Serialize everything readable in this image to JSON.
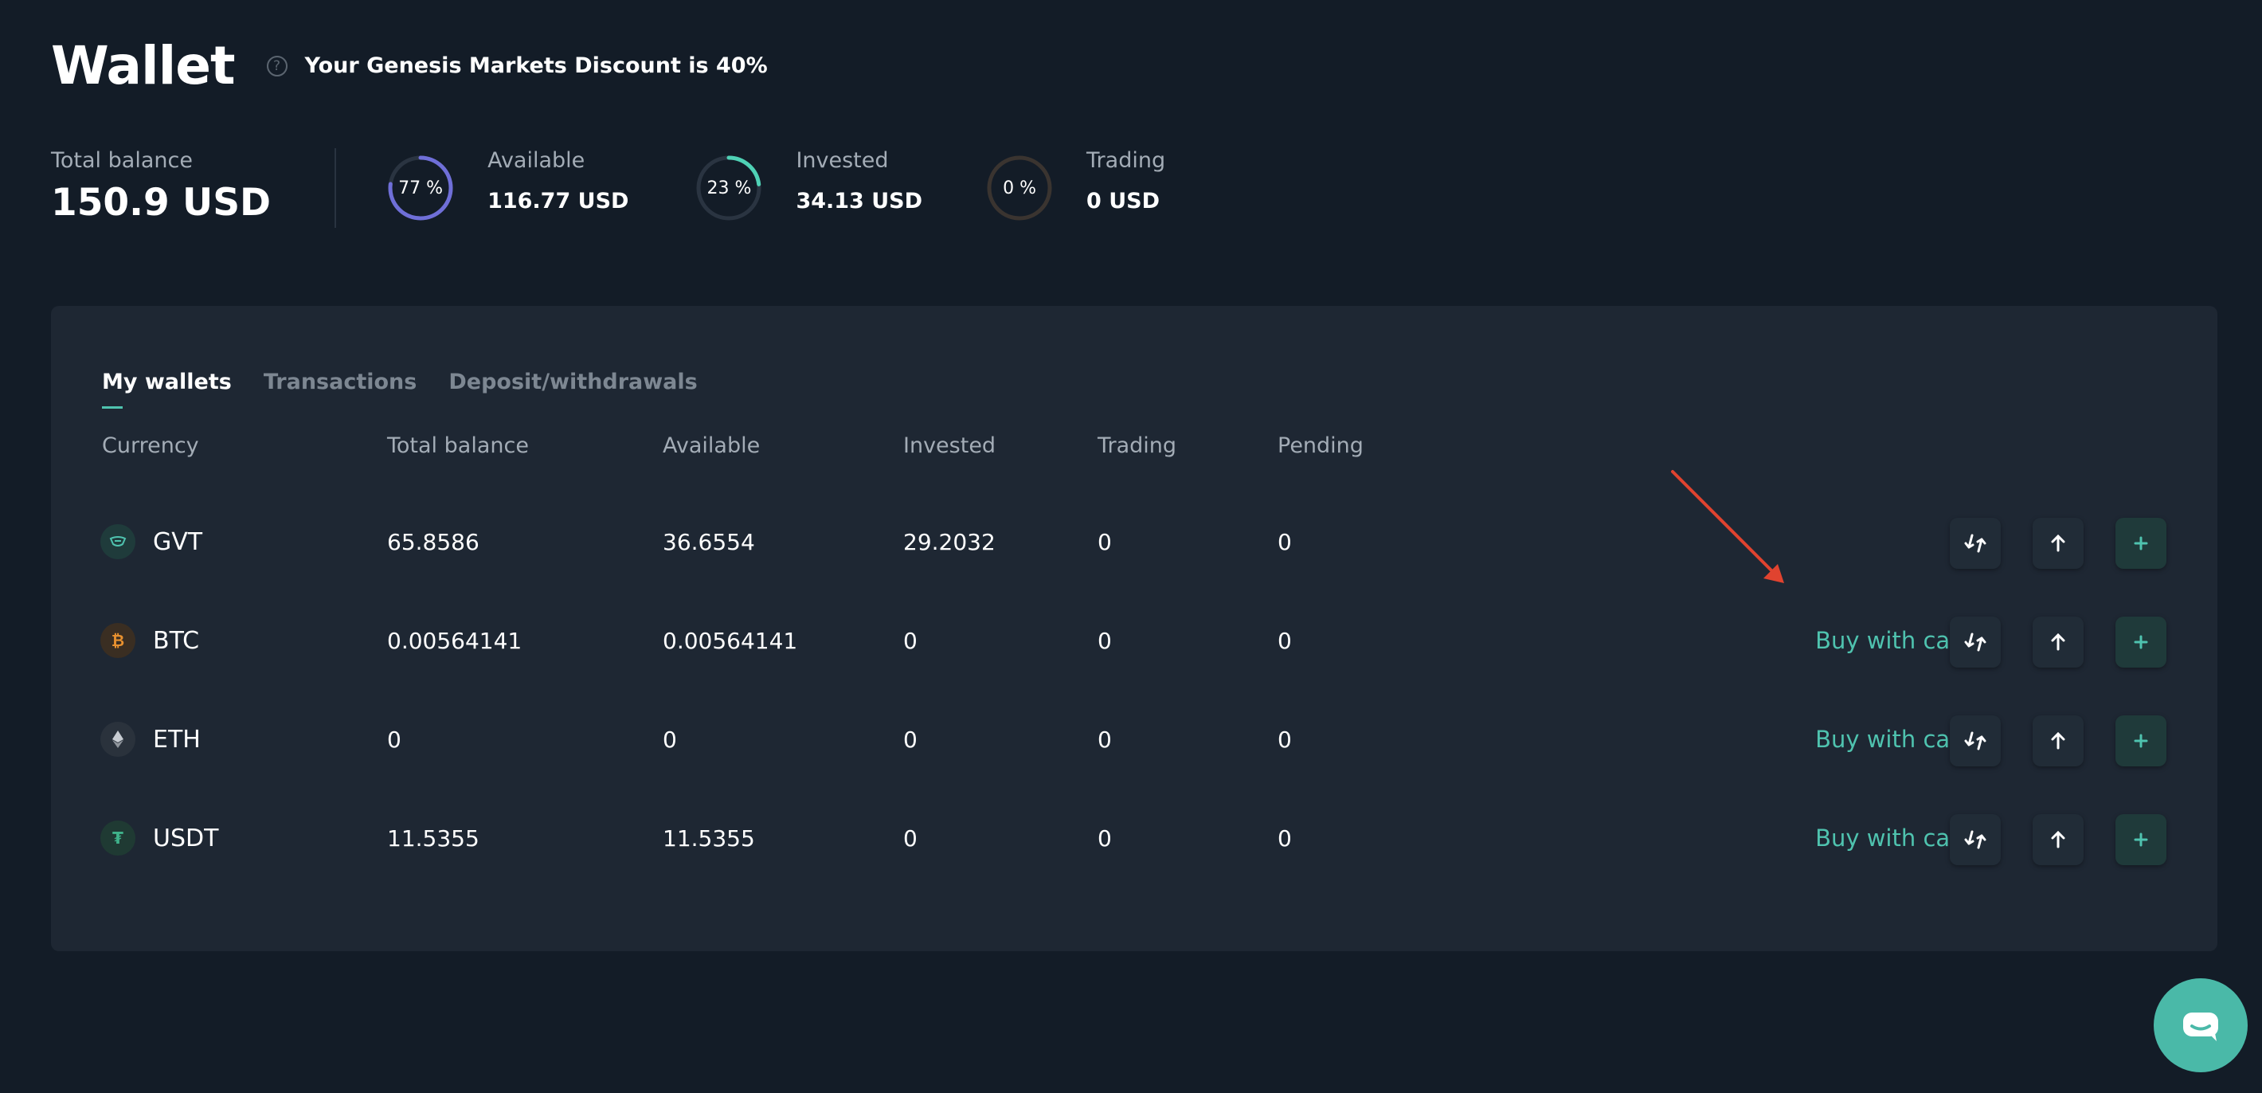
{
  "header": {
    "title": "Wallet",
    "discount_text": "Your Genesis Markets Discount is 40%",
    "help_icon": "?"
  },
  "summary": {
    "total_label": "Total balance",
    "total_value": "150.9 USD",
    "stats": [
      {
        "percent_label": "77 %",
        "percent": 77,
        "label": "Available",
        "value": "116.77 USD",
        "color": "#6f6fd8"
      },
      {
        "percent_label": "23 %",
        "percent": 23,
        "label": "Invested",
        "value": "34.13 USD",
        "color": "#4fd1b5"
      },
      {
        "percent_label": "0 %",
        "percent": 0,
        "label": "Trading",
        "value": "0 USD",
        "color": "#e0a060"
      }
    ]
  },
  "tabs": [
    "My wallets",
    "Transactions",
    "Deposit/withdrawals"
  ],
  "columns": [
    "Currency",
    "Total balance",
    "Available",
    "Invested",
    "Trading",
    "Pending"
  ],
  "rows": [
    {
      "currency": "GVT",
      "icon": "gvt-icon",
      "total": "65.8586",
      "available": "36.6554",
      "invested": "29.2032",
      "trading": "0",
      "pending": "0",
      "buy_label": ""
    },
    {
      "currency": "BTC",
      "icon": "btc-icon",
      "total": "0.00564141",
      "available": "0.00564141",
      "invested": "0",
      "trading": "0",
      "pending": "0",
      "buy_label": "Buy with card"
    },
    {
      "currency": "ETH",
      "icon": "eth-icon",
      "total": "0",
      "available": "0",
      "invested": "0",
      "trading": "0",
      "pending": "0",
      "buy_label": "Buy with card"
    },
    {
      "currency": "USDT",
      "icon": "usdt-icon",
      "total": "11.5355",
      "available": "11.5355",
      "invested": "0",
      "trading": "0",
      "pending": "0",
      "buy_label": "Buy with card"
    }
  ],
  "colors": {
    "background": "#131c27",
    "panel": "#1e2733",
    "accent": "#4fc3af",
    "annotation_arrow": "#e0432f"
  }
}
